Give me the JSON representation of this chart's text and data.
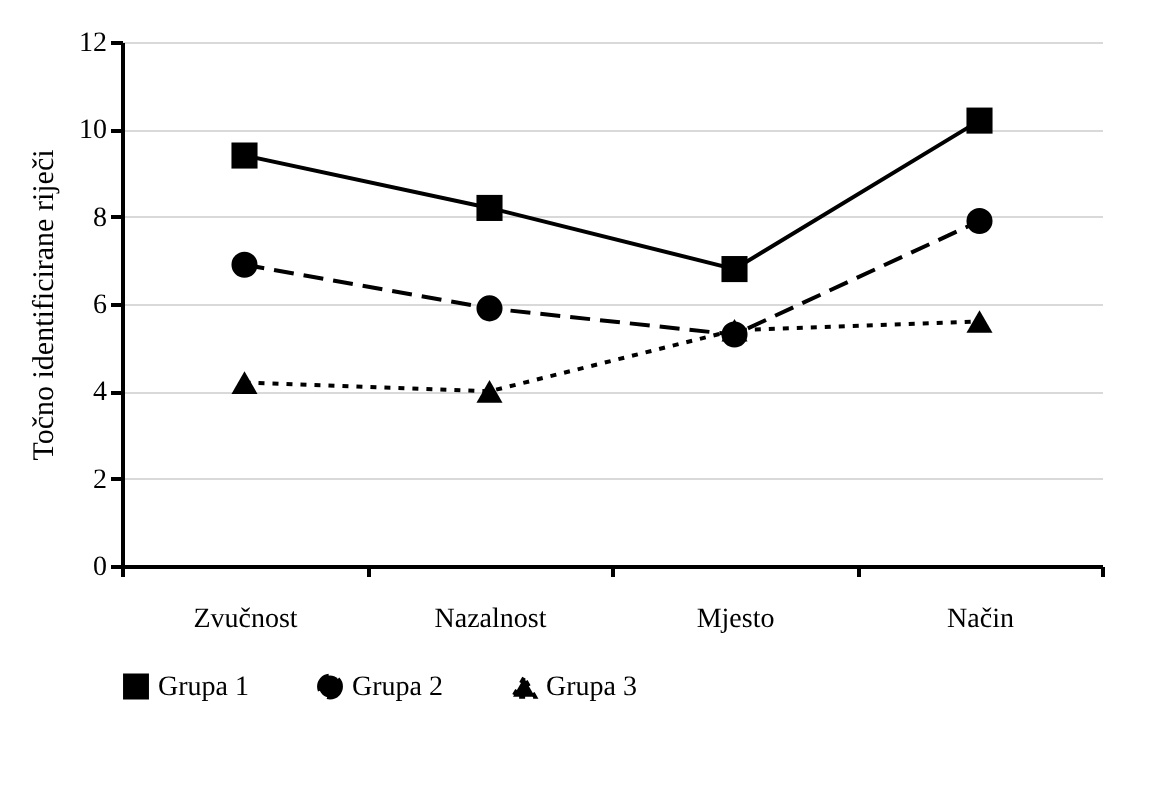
{
  "chart_data": {
    "type": "line",
    "ylabel": "Točno identificirane riječi",
    "categories": [
      "Zvučnost",
      "Nazalnost",
      "Mjesto",
      "Način"
    ],
    "series": [
      {
        "name": "Grupa 1",
        "color": "#000000",
        "marker": "square",
        "line_style": "solid",
        "values": [
          9.4,
          8.2,
          6.8,
          10.2
        ]
      },
      {
        "name": "Grupa 2",
        "color": "#000000",
        "marker": "circle",
        "line_style": "dashed",
        "values": [
          6.9,
          5.9,
          5.3,
          7.9
        ]
      },
      {
        "name": "Grupa 3",
        "color": "#000000",
        "marker": "triangle",
        "line_style": "dotted",
        "values": [
          4.2,
          4.0,
          5.4,
          5.6
        ]
      }
    ],
    "ylim": [
      0,
      12
    ],
    "yticks": [
      0,
      2,
      4,
      6,
      8,
      10,
      12
    ],
    "grid": "y",
    "legend": "bottom"
  }
}
